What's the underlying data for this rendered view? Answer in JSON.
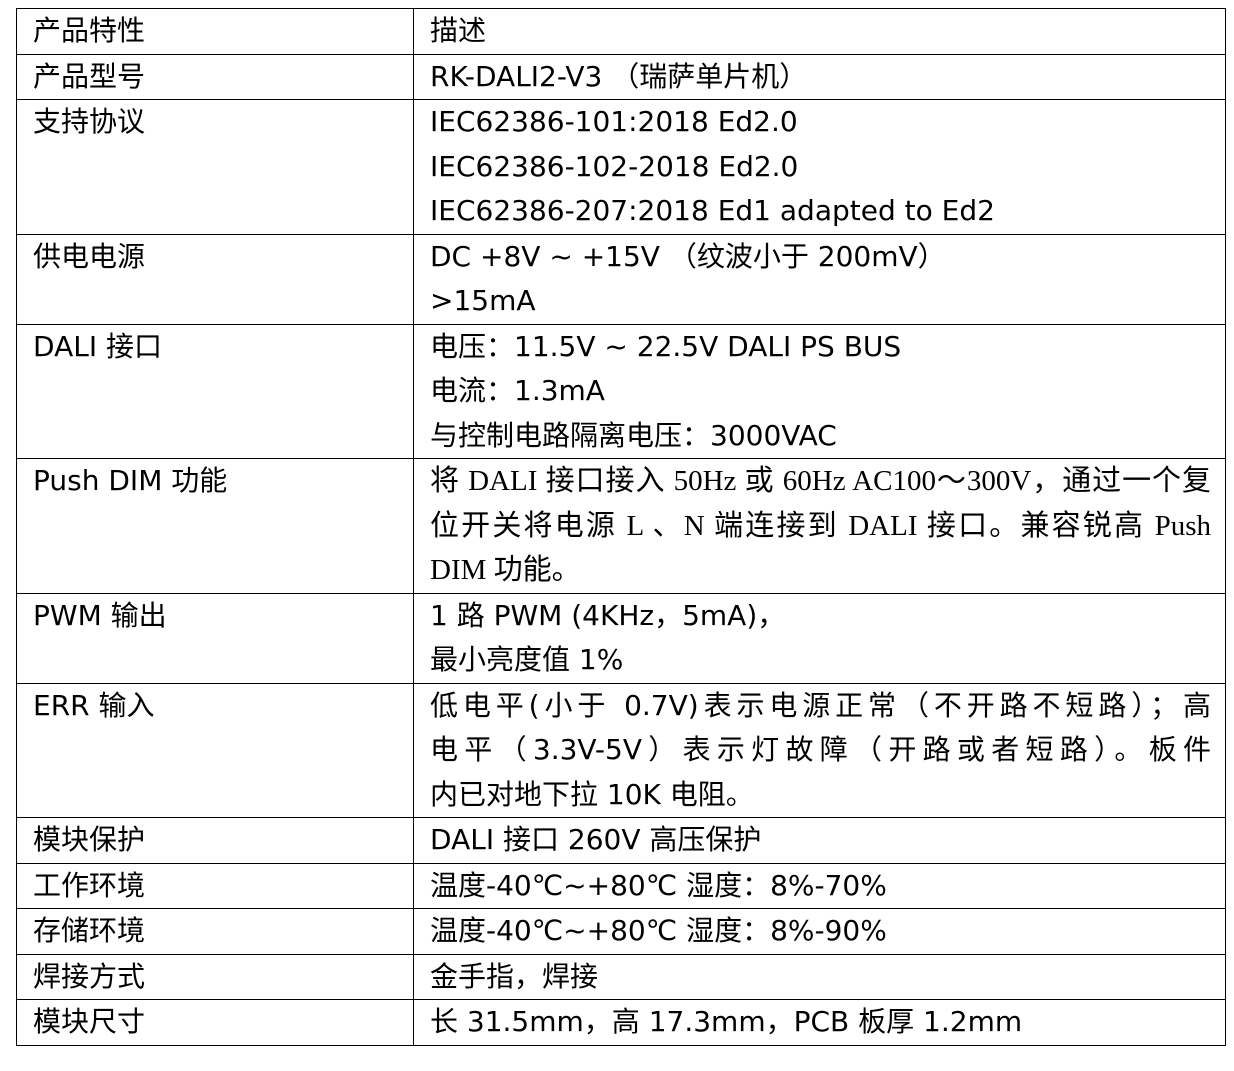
{
  "table": {
    "header": {
      "key": "产品特性",
      "value": [
        "描述"
      ]
    },
    "rows": [
      {
        "key": "产品型号",
        "value": [
          "RK-DALI2-V3 （瑞萨单片机）"
        ]
      },
      {
        "key": "支持协议",
        "value": [
          "IEC62386-101:2018 Ed2.0",
          "IEC62386-102-2018 Ed2.0",
          "IEC62386-207:2018 Ed1 adapted to Ed2"
        ]
      },
      {
        "key": "供电电源",
        "value": [
          "DC +8V ~ +15V （纹波小于 200mV）",
          ">15mA"
        ]
      },
      {
        "key": "DALI 接口",
        "value": [
          "电压：11.5V ~ 22.5V DALI PS BUS",
          "电流：1.3mA",
          "与控制电路隔离电压：3000VAC"
        ]
      },
      {
        "key": "Push DIM 功能",
        "serif": true,
        "value": [
          "将 DALI 接口接入 50Hz 或 60Hz AC100～300V，通过一个复",
          "位开关将电源 L 、N 端连接到 DALI 接口。兼容锐高 Push",
          "DIM 功能。"
        ]
      },
      {
        "key": "PWM 输出",
        "value": [
          "1 路 PWM (4KHz，5mA)，",
          "最小亮度值 1%"
        ]
      },
      {
        "key": "ERR 输入",
        "value": [
          "低电平(小于 0.7V)表示电源正常（不开路不短路）；高",
          "电平（3.3V-5V）表示灯故障（开路或者短路）。板件",
          "内已对地下拉 10K 电阻。"
        ]
      },
      {
        "key": "模块保护",
        "value": [
          "DALI 接口 260V 高压保护"
        ]
      },
      {
        "key": "工作环境",
        "value": [
          "温度-40℃~+80℃ 湿度：8%-70%"
        ]
      },
      {
        "key": "存储环境",
        "value": [
          "温度-40℃~+80℃ 湿度：8%-90%"
        ]
      },
      {
        "key": "焊接方式",
        "value": [
          "金手指，焊接"
        ]
      },
      {
        "key": "模块尺寸",
        "value": [
          "长 31.5mm，高 17.3mm，PCB 板厚 1.2mm"
        ]
      }
    ]
  }
}
